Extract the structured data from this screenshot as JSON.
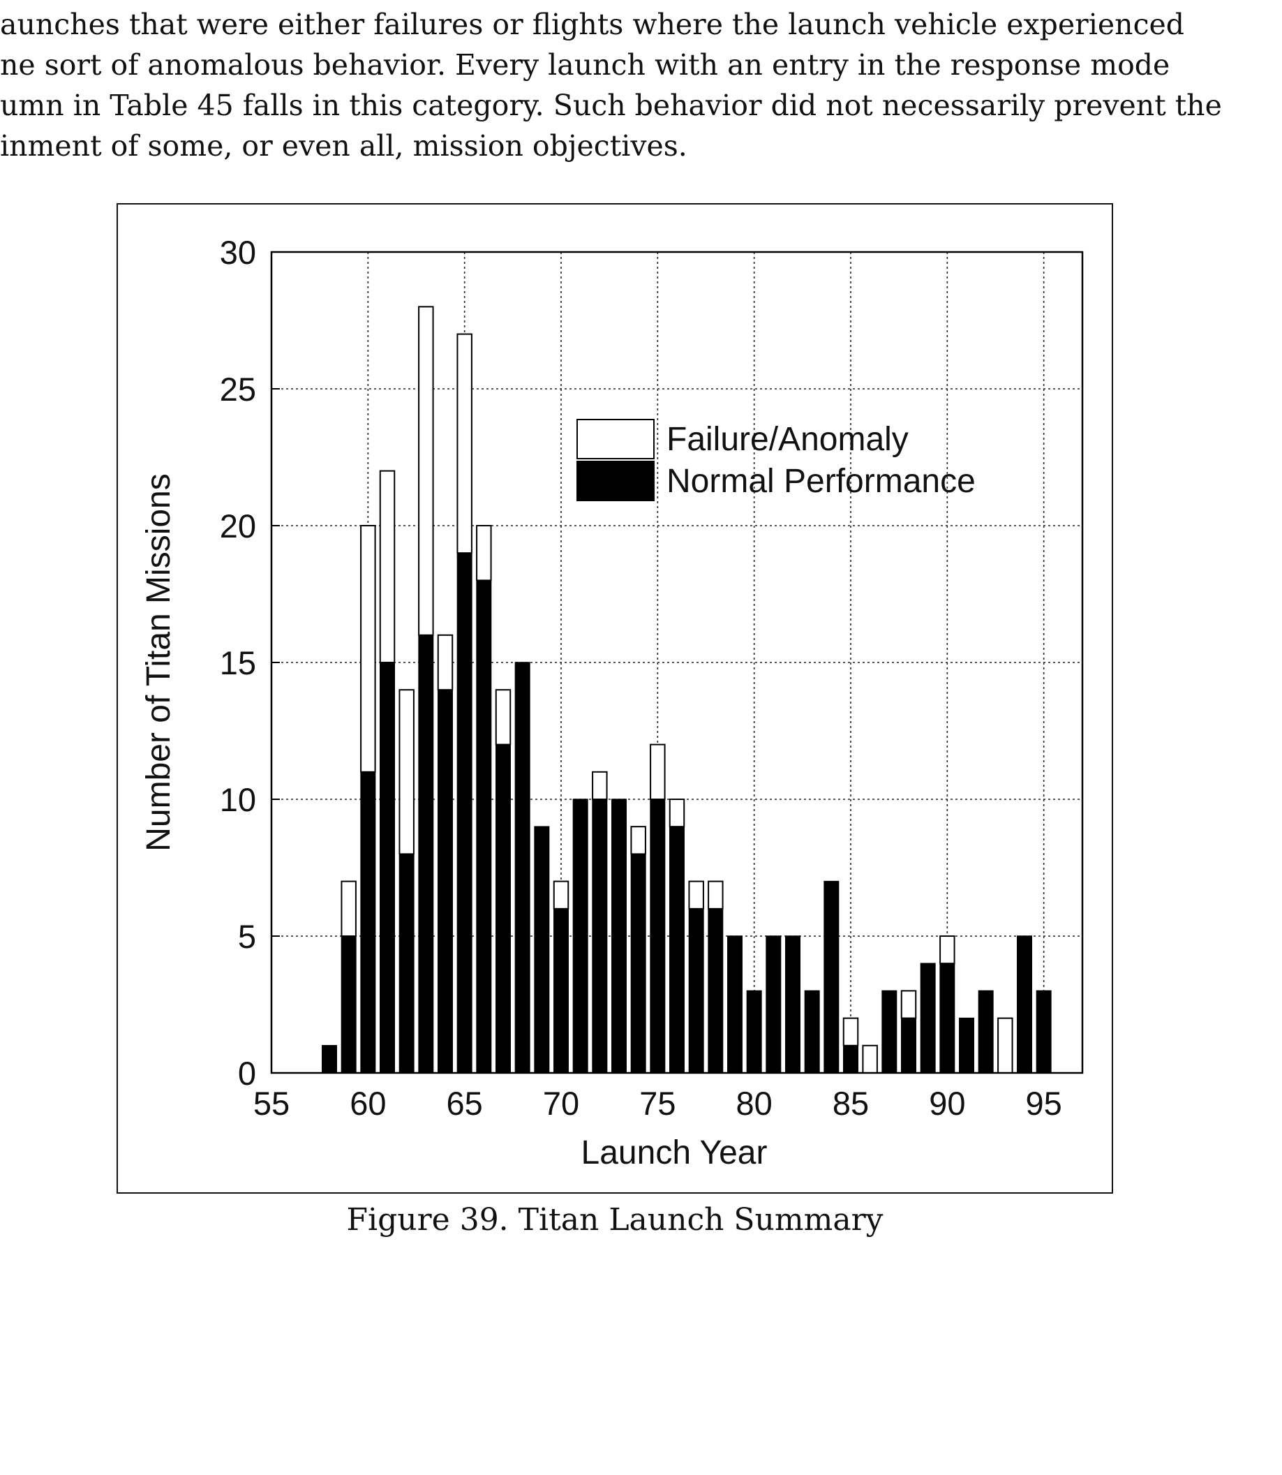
{
  "paragraph": {
    "lines": [
      "aunches that were either failures or flights where the launch vehicle experienced",
      "ne sort of anomalous behavior. Every launch with an entry in the response mode",
      "umn in Table 45 falls in this category.  Such behavior did not necessarily prevent the",
      "inment of some, or even all, mission objectives."
    ]
  },
  "caption": "Figure 39. Titan Launch Summary",
  "chart_data": {
    "type": "bar",
    "stacked": true,
    "xlabel": "Launch Year",
    "ylabel": "Number of Titan Missions",
    "xlim": [
      55,
      97
    ],
    "ylim": [
      0,
      30
    ],
    "x_ticks": [
      55,
      60,
      65,
      70,
      75,
      80,
      85,
      90,
      95
    ],
    "y_ticks": [
      0,
      5,
      10,
      15,
      20,
      25,
      30
    ],
    "grid": true,
    "legend_position": "top-right",
    "colors": {
      "Normal Performance": "#000000",
      "Failure/Anomaly": "#ffffff"
    },
    "x": [
      58,
      59,
      60,
      61,
      62,
      63,
      64,
      65,
      66,
      67,
      68,
      69,
      70,
      71,
      72,
      73,
      74,
      75,
      76,
      77,
      78,
      79,
      80,
      81,
      82,
      83,
      84,
      85,
      86,
      87,
      88,
      89,
      90,
      91,
      92,
      93,
      94,
      95
    ],
    "series": [
      {
        "name": "Normal Performance",
        "values": [
          1,
          5,
          11,
          15,
          8,
          16,
          14,
          19,
          18,
          12,
          15,
          9,
          6,
          10,
          10,
          10,
          8,
          10,
          9,
          6,
          6,
          5,
          3,
          5,
          5,
          3,
          7,
          1,
          0,
          3,
          2,
          4,
          4,
          2,
          3,
          0,
          5,
          3
        ]
      },
      {
        "name": "Failure/Anomaly",
        "values": [
          0,
          2,
          9,
          7,
          6,
          12,
          2,
          8,
          2,
          2,
          0,
          0,
          1,
          0,
          1,
          0,
          1,
          2,
          1,
          1,
          1,
          0,
          0,
          0,
          0,
          0,
          0,
          1,
          1,
          0,
          1,
          0,
          1,
          0,
          0,
          2,
          0,
          0
        ]
      }
    ]
  }
}
